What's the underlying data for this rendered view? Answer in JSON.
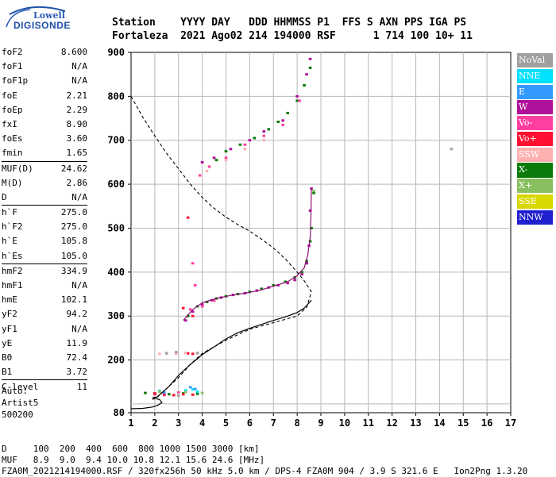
{
  "logo": {
    "line1": "Lowell",
    "line2": "DIGISONDE"
  },
  "header": {
    "line1": "Station    YYYY DAY   DDD HHMMSS P1  FFS S AXN PPS IGA PS",
    "line2": "Fortaleza  2021 Ago02 214 194000 RSF      1 714 100 10+ 11"
  },
  "params": [
    {
      "name": "foF2",
      "value": "8.600"
    },
    {
      "name": "foF1",
      "value": "N/A"
    },
    {
      "name": "foF1p",
      "value": "N/A"
    },
    {
      "name": "foE",
      "value": "2.21"
    },
    {
      "name": "foEp",
      "value": "2.29"
    },
    {
      "name": "fxI",
      "value": "8.90"
    },
    {
      "name": "foEs",
      "value": "3.60"
    },
    {
      "name": "fmin",
      "value": "1.65"
    },
    {
      "name": "MUF(D)",
      "value": "24.62"
    },
    {
      "name": "M(D)",
      "value": "2.86"
    },
    {
      "name": "D",
      "value": "N/A"
    },
    {
      "name": "h`F",
      "value": "275.0"
    },
    {
      "name": "h`F2",
      "value": "275.0"
    },
    {
      "name": "h`E",
      "value": "105.8"
    },
    {
      "name": "h`Es",
      "value": "105.0"
    },
    {
      "name": "hmF2",
      "value": "334.9"
    },
    {
      "name": "hmF1",
      "value": "N/A"
    },
    {
      "name": "hmE",
      "value": "102.1"
    },
    {
      "name": "yF2",
      "value": "94.2"
    },
    {
      "name": "yF1",
      "value": "N/A"
    },
    {
      "name": "yE",
      "value": "11.9"
    },
    {
      "name": "B0",
      "value": "72.4"
    },
    {
      "name": "B1",
      "value": "3.72"
    },
    {
      "name": "C-level",
      "value": "11"
    }
  ],
  "autoscaling": "Auto:\nArtist5\n500200",
  "legend": [
    {
      "label": "NoVal",
      "color": "#a0a0a0"
    },
    {
      "label": "NNE",
      "color": "#00e0ff"
    },
    {
      "label": "E",
      "color": "#3399ff"
    },
    {
      "label": "W",
      "color": "#b0109a"
    },
    {
      "label": "Vo-",
      "color": "#ff3fa0"
    },
    {
      "label": "Vo+",
      "color": "#ff1030"
    },
    {
      "label": "SSW",
      "color": "#ffb0b0"
    },
    {
      "label": "X-",
      "color": "#0a7a0a"
    },
    {
      "label": "X+",
      "color": "#88c060"
    },
    {
      "label": "SSE",
      "color": "#d8d800"
    },
    {
      "label": "NNW",
      "color": "#2020d0"
    }
  ],
  "footer": {
    "line1": "D     100  200  400  600  800 1000 1500 3000 [km]",
    "line2": "MUF   8.9  9.0  9.4 10.0 10.8 12.1 15.6 24.6 [MHz]",
    "line3": "FZA0M_2021214194000.RSF / 320fx256h 50 kHz 5.0 km / DPS-4 FZA0M 904 / 3.9 S 321.6 E   Ion2Png 1.3.20"
  },
  "chart_data": {
    "type": "scatter",
    "xlim": [
      1,
      17
    ],
    "ylim": [
      80,
      900
    ],
    "x_ticks": [
      "1",
      "2",
      "3",
      "4",
      "5",
      "6",
      "7",
      "8",
      "9",
      "10",
      "11",
      "12",
      "13",
      "14",
      "15",
      "16",
      "17"
    ],
    "y_ticks": [
      "100",
      "200",
      "300",
      "400",
      "500",
      "600",
      "700",
      "800",
      "900"
    ],
    "y_tick_labels_shown": [
      "80",
      "200",
      "300",
      "400",
      "500",
      "600",
      "700",
      "800",
      "900"
    ],
    "grid": true,
    "series": [
      {
        "name": "X-",
        "color": "#0a7a0a",
        "points": [
          [
            3.4,
            300
          ],
          [
            3.8,
            322
          ],
          [
            4.2,
            332
          ],
          [
            4.6,
            340
          ],
          [
            5.0,
            345
          ],
          [
            5.5,
            350
          ],
          [
            6.0,
            355
          ],
          [
            6.5,
            362
          ],
          [
            7.0,
            370
          ],
          [
            7.5,
            378
          ],
          [
            7.9,
            388
          ],
          [
            8.2,
            400
          ],
          [
            8.4,
            425
          ],
          [
            8.55,
            470
          ],
          [
            8.6,
            500
          ],
          [
            8.7,
            580
          ],
          [
            1.6,
            125
          ],
          [
            2.0,
            124
          ],
          [
            2.6,
            122
          ],
          [
            3.2,
            124
          ],
          [
            3.8,
            123
          ],
          [
            4.6,
            655
          ],
          [
            5.0,
            675
          ],
          [
            5.6,
            690
          ],
          [
            6.2,
            705
          ],
          [
            6.8,
            725
          ],
          [
            7.2,
            742
          ],
          [
            7.6,
            762
          ],
          [
            8.0,
            790
          ],
          [
            8.3,
            825
          ],
          [
            8.55,
            865
          ]
        ]
      },
      {
        "name": "W",
        "color": "#b0109a",
        "points": [
          [
            3.3,
            290
          ],
          [
            3.6,
            310
          ],
          [
            4.0,
            326
          ],
          [
            4.4,
            336
          ],
          [
            4.8,
            342
          ],
          [
            5.3,
            348
          ],
          [
            5.8,
            352
          ],
          [
            6.3,
            358
          ],
          [
            6.8,
            365
          ],
          [
            7.2,
            370
          ],
          [
            7.6,
            375
          ],
          [
            7.9,
            382
          ],
          [
            8.2,
            395
          ],
          [
            8.4,
            420
          ],
          [
            8.5,
            460
          ],
          [
            8.55,
            540
          ],
          [
            8.6,
            590
          ],
          [
            4.0,
            650
          ],
          [
            4.5,
            660
          ],
          [
            5.2,
            680
          ],
          [
            6.0,
            700
          ],
          [
            6.6,
            720
          ],
          [
            7.4,
            745
          ],
          [
            8.0,
            800
          ],
          [
            8.4,
            850
          ],
          [
            8.55,
            885
          ]
        ]
      },
      {
        "name": "Vo-",
        "color": "#ff3fa0",
        "points": [
          [
            3.5,
            315
          ],
          [
            4.0,
            322
          ],
          [
            4.5,
            335
          ],
          [
            3.7,
            370
          ],
          [
            3.6,
            420
          ],
          [
            3.9,
            620
          ],
          [
            4.3,
            640
          ],
          [
            5.0,
            660
          ],
          [
            5.8,
            690
          ],
          [
            6.6,
            710
          ],
          [
            7.4,
            735
          ],
          [
            8.1,
            790
          ],
          [
            2.0,
            122
          ],
          [
            2.4,
            120
          ],
          [
            3.0,
            126
          ]
        ]
      },
      {
        "name": "Vo+",
        "color": "#ff1030",
        "points": [
          [
            2.0,
            124
          ],
          [
            2.4,
            122
          ],
          [
            2.8,
            120
          ],
          [
            3.2,
            122
          ],
          [
            3.6,
            121
          ],
          [
            3.4,
            215
          ],
          [
            3.6,
            214
          ],
          [
            3.2,
            318
          ],
          [
            3.6,
            300
          ],
          [
            3.4,
            524
          ]
        ]
      },
      {
        "name": "SSW",
        "color": "#ffb0b0",
        "points": [
          [
            2.2,
            214
          ],
          [
            2.5,
            216
          ],
          [
            2.9,
            214
          ],
          [
            3.3,
            216
          ],
          [
            3.8,
            215
          ],
          [
            2.3,
            125
          ],
          [
            3.0,
            122
          ],
          [
            4.2,
            630
          ],
          [
            5.0,
            655
          ],
          [
            5.8,
            680
          ],
          [
            6.6,
            700
          ]
        ]
      },
      {
        "name": "NNE",
        "color": "#00e0ff",
        "points": [
          [
            2.2,
            130
          ],
          [
            3.3,
            131
          ],
          [
            3.6,
            133
          ],
          [
            3.8,
            128
          ]
        ]
      },
      {
        "name": "E",
        "color": "#3399ff",
        "points": [
          [
            3.5,
            138
          ],
          [
            3.7,
            134
          ],
          [
            2.4,
            126
          ]
        ]
      },
      {
        "name": "NoVal",
        "color": "#a0a0a0",
        "points": [
          [
            2.5,
            215
          ],
          [
            2.9,
            218
          ],
          [
            3.8,
            216
          ],
          [
            3.0,
            119
          ],
          [
            14.5,
            680
          ]
        ]
      },
      {
        "name": "X+",
        "color": "#88c060",
        "points": [
          [
            2.2,
            128
          ],
          [
            3.3,
            127
          ],
          [
            4.0,
            125
          ],
          [
            8.7,
            585
          ]
        ]
      }
    ],
    "profile_solid": [
      [
        1.0,
        89
      ],
      [
        1.5,
        90
      ],
      [
        1.9,
        93
      ],
      [
        2.1,
        96
      ],
      [
        2.3,
        103
      ],
      [
        2.2,
        110
      ],
      [
        1.9,
        114
      ],
      [
        2.1,
        116
      ],
      [
        2.6,
        140
      ],
      [
        3.0,
        165
      ],
      [
        3.5,
        190
      ],
      [
        4.0,
        212
      ],
      [
        4.5,
        230
      ],
      [
        5.0,
        248
      ],
      [
        5.5,
        262
      ],
      [
        6.0,
        272
      ],
      [
        6.5,
        281
      ],
      [
        7.0,
        290
      ],
      [
        7.5,
        298
      ],
      [
        8.0,
        308
      ],
      [
        8.3,
        318
      ],
      [
        8.5,
        330
      ],
      [
        8.6,
        336
      ]
    ],
    "profile_dashed": [
      [
        1.0,
        800
      ],
      [
        1.5,
        752
      ],
      [
        2.0,
        710
      ],
      [
        2.5,
        670
      ],
      [
        3.0,
        635
      ],
      [
        3.5,
        600
      ],
      [
        4.0,
        570
      ],
      [
        4.5,
        545
      ],
      [
        5.0,
        525
      ],
      [
        5.5,
        508
      ],
      [
        6.0,
        493
      ],
      [
        6.5,
        475
      ],
      [
        7.0,
        455
      ],
      [
        7.5,
        430
      ],
      [
        8.0,
        400
      ],
      [
        8.3,
        380
      ],
      [
        8.6,
        355
      ],
      [
        8.4,
        320
      ],
      [
        8.0,
        300
      ],
      [
        7.0,
        285
      ],
      [
        6.0,
        270
      ],
      [
        5.0,
        245
      ],
      [
        4.0,
        215
      ],
      [
        3.5,
        190
      ],
      [
        3.0,
        160
      ],
      [
        2.5,
        135
      ],
      [
        2.1,
        115
      ],
      [
        1.9,
        110
      ]
    ],
    "trace_line": [
      [
        3.2,
        290
      ],
      [
        3.6,
        315
      ],
      [
        4.0,
        330
      ],
      [
        4.6,
        340
      ],
      [
        5.2,
        347
      ],
      [
        5.8,
        352
      ],
      [
        6.4,
        358
      ],
      [
        7.0,
        368
      ],
      [
        7.6,
        378
      ],
      [
        8.0,
        392
      ],
      [
        8.3,
        410
      ],
      [
        8.45,
        440
      ],
      [
        8.55,
        480
      ],
      [
        8.58,
        530
      ],
      [
        8.6,
        590
      ]
    ]
  }
}
